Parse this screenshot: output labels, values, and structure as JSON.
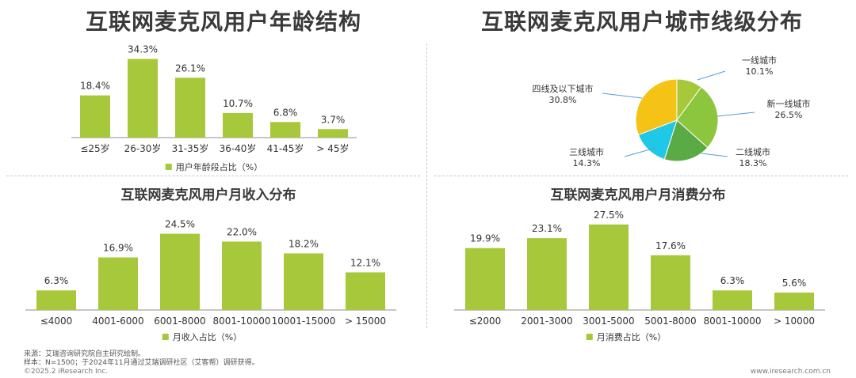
{
  "colors": {
    "bar": "#a6c83a",
    "axis": "#8c8c8c",
    "text": "#333333"
  },
  "titles": {
    "age": "互联网麦克风用户年龄结构",
    "city": "互联网麦克风用户城市线级分布",
    "income": "互联网麦克风用户月收入分布",
    "spend": "互联网麦克风用户月消费分布"
  },
  "chart_data": [
    {
      "type": "bar",
      "title": "互联网麦克风用户年龄结构",
      "categories": [
        "≤25岁",
        "26-30岁",
        "31-35岁",
        "36-40岁",
        "41-45岁",
        "> 45岁"
      ],
      "series": [
        {
          "name": "用户年龄段占比（%）",
          "values": [
            18.4,
            34.3,
            26.1,
            10.7,
            6.8,
            3.7
          ]
        }
      ],
      "data_labels": [
        "18.4%",
        "34.3%",
        "26.1%",
        "10.7%",
        "6.8%",
        "3.7%"
      ],
      "ylim": [
        0,
        40
      ]
    },
    {
      "type": "pie",
      "title": "互联网麦克风用户城市线级分布",
      "slices": [
        {
          "label": "一线城市",
          "value": 10.1,
          "text": "10.1%",
          "color": "#a6c83a"
        },
        {
          "label": "新一线城市",
          "value": 26.5,
          "text": "26.5%",
          "color": "#8cc63f"
        },
        {
          "label": "二线城市",
          "value": 18.3,
          "text": "18.3%",
          "color": "#5aaa46"
        },
        {
          "label": "三线城市",
          "value": 14.3,
          "text": "14.3%",
          "color": "#1ec8e6"
        },
        {
          "label": "四线及以下城市",
          "value": 30.8,
          "text": "30.8%",
          "color": "#f5c316"
        }
      ]
    },
    {
      "type": "bar",
      "title": "互联网麦克风用户月收入分布",
      "categories": [
        "≤4000",
        "4001-6000",
        "6001-8000",
        "8001-10000",
        "10001-15000",
        "> 15000"
      ],
      "series": [
        {
          "name": "月收入占比（%）",
          "values": [
            6.3,
            16.9,
            24.5,
            22.0,
            18.2,
            12.1
          ]
        }
      ],
      "data_labels": [
        "6.3%",
        "16.9%",
        "24.5%",
        "22.0%",
        "18.2%",
        "12.1%"
      ],
      "ylim": [
        0,
        30
      ]
    },
    {
      "type": "bar",
      "title": "互联网麦克风用户月消费分布",
      "categories": [
        "≤2000",
        "2001-3000",
        "3001-5000",
        "5001-8000",
        "8001-10000",
        "> 10000"
      ],
      "series": [
        {
          "name": "月消费占比（%）",
          "values": [
            19.9,
            23.1,
            27.5,
            17.6,
            6.3,
            5.6
          ]
        }
      ],
      "data_labels": [
        "19.9%",
        "23.1%",
        "27.5%",
        "17.6%",
        "6.3%",
        "5.6%"
      ],
      "ylim": [
        0,
        30
      ]
    }
  ],
  "footer": {
    "source": "来源：艾瑞咨询研究院自主研究绘制。",
    "sample": "样本：N=1500；于2024年11月通过艾瑞调研社区（艾客帮）调研获得。",
    "copyright": "©2025.2 iResearch Inc.",
    "website": "www.iresearch.com.cn"
  }
}
